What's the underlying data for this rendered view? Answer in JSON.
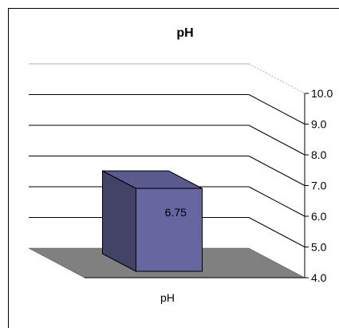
{
  "chart_data": {
    "type": "bar",
    "title": "pH",
    "categories": [
      "pH"
    ],
    "values": [
      6.75
    ],
    "data_labels": [
      "6.75"
    ],
    "ylim": [
      4.0,
      10.0
    ],
    "y_ticks": [
      "4.0",
      "5.0",
      "6.0",
      "7.0",
      "8.0",
      "9.0",
      "10.0"
    ],
    "xlabel": "",
    "ylabel": "",
    "grid": true,
    "legend": "none",
    "style": "3d-column",
    "colors": {
      "bar_front": "#6666a0",
      "bar_side": "#434368",
      "bar_top": "#5a5a8e",
      "floor": "#808080",
      "gridline": "#000000",
      "top_gridline": "#b0b0b0"
    }
  }
}
